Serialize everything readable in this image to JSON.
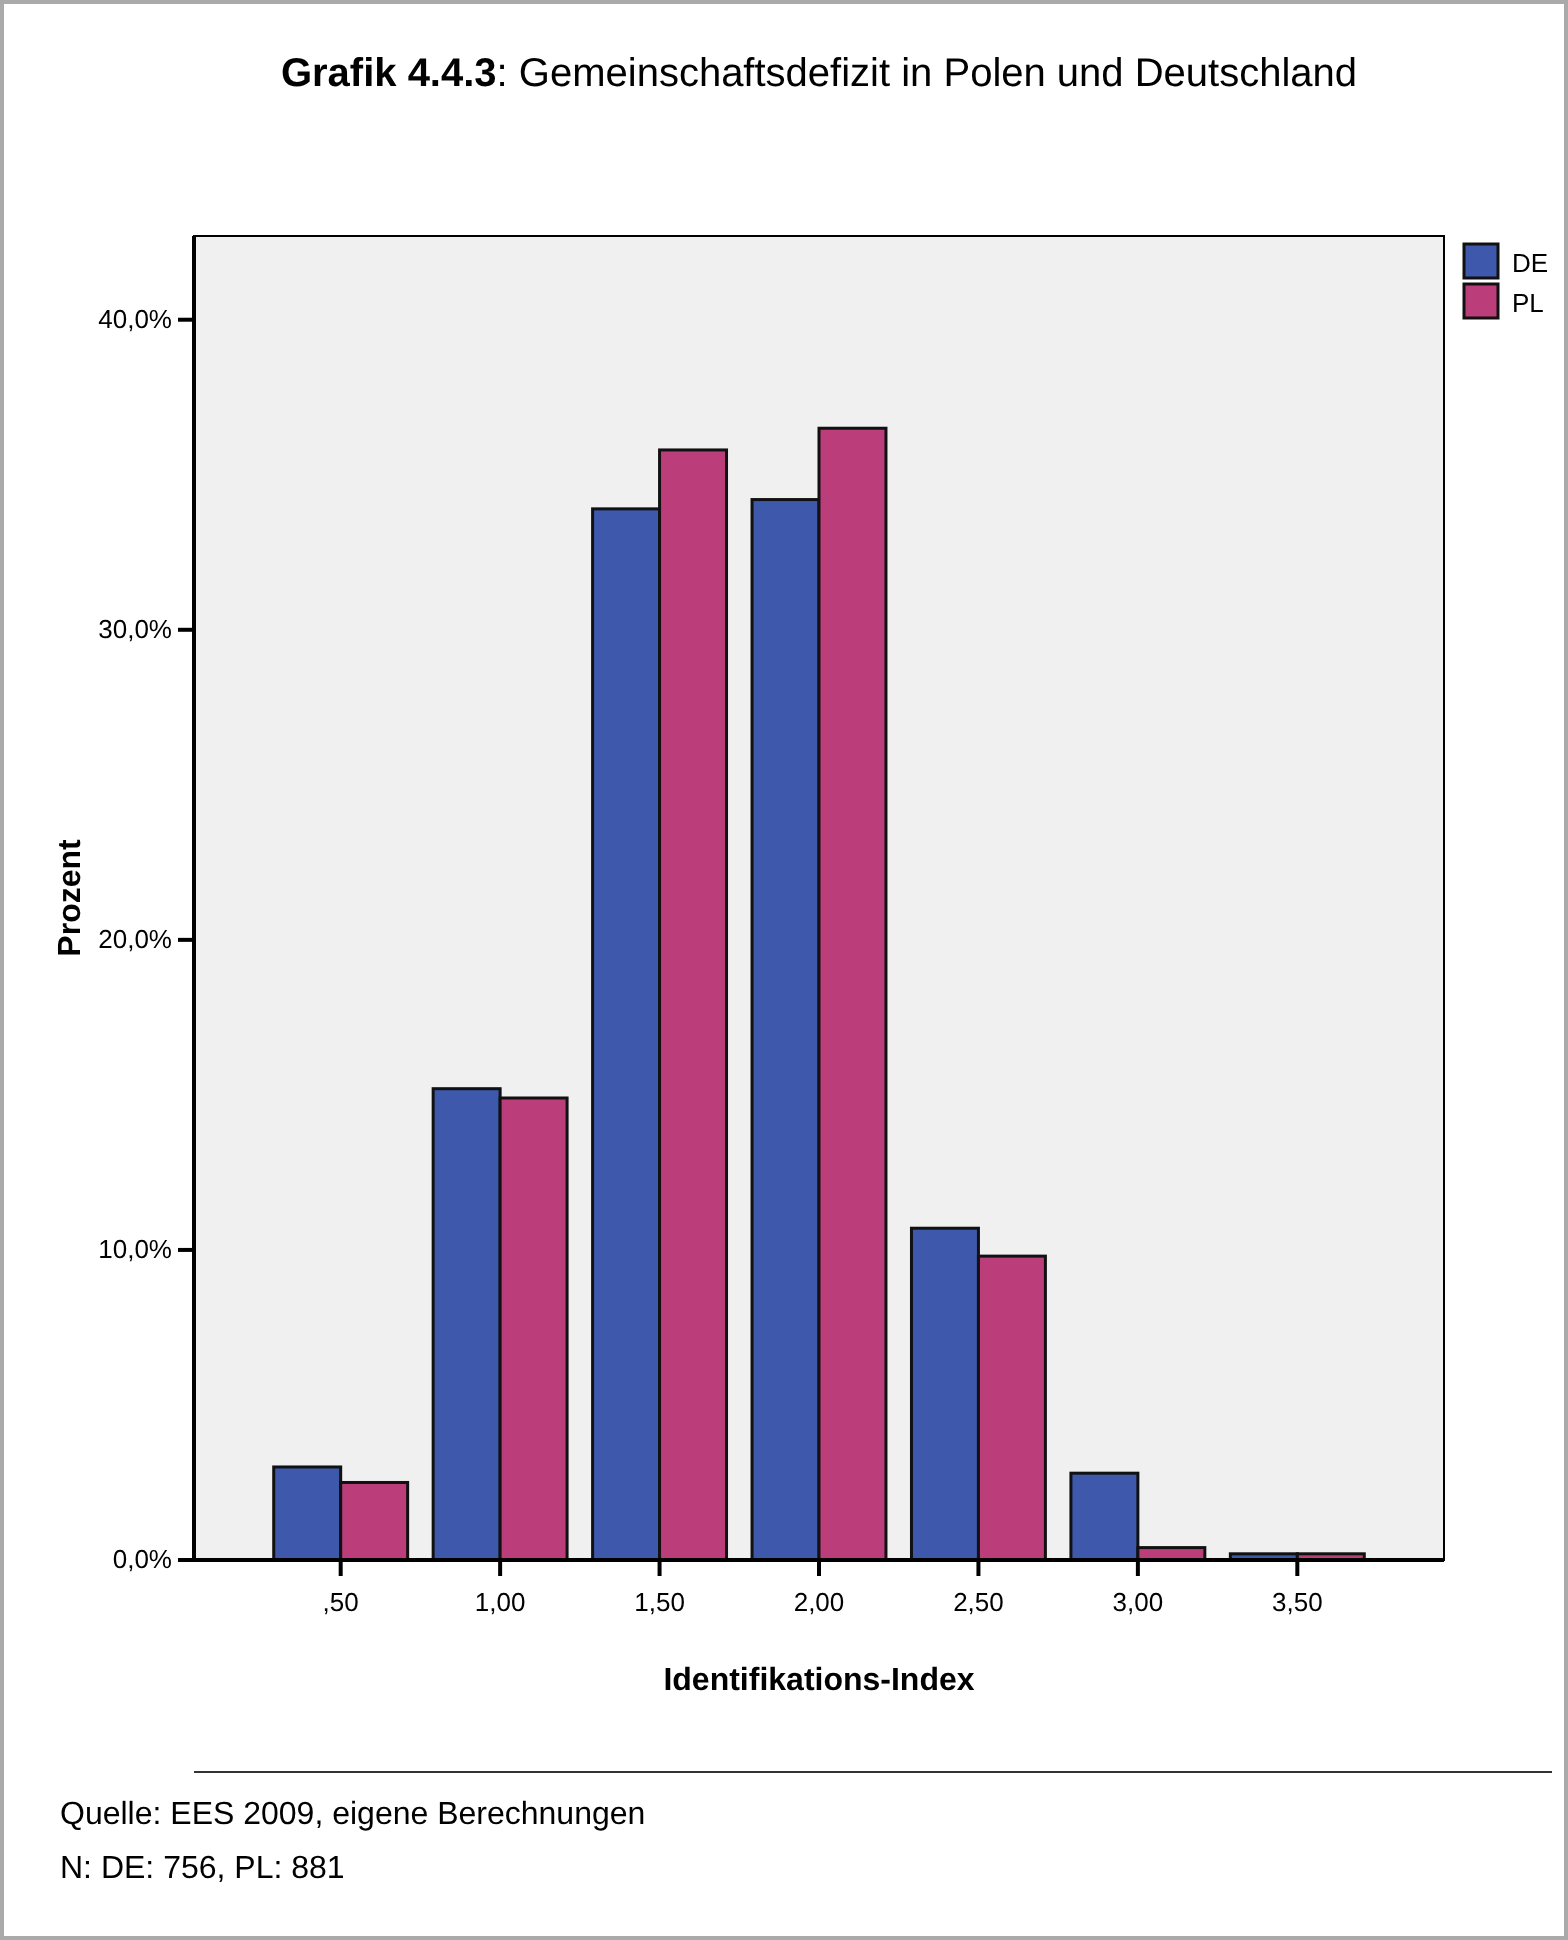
{
  "chart_data": {
    "type": "bar",
    "title": "Grafik 4.4.3: Gemeinschaftsdefizit in Polen und Deutschland",
    "xlabel": "Identifikations-Index",
    "ylabel": "Prozent",
    "categories": [
      ",50",
      "1,00",
      "1,50",
      "2,00",
      "2,50",
      "3,00",
      "3,50"
    ],
    "series": [
      {
        "name": "DE",
        "color": "#3e58ac",
        "values": [
          3.0,
          15.2,
          33.9,
          34.2,
          10.7,
          2.8,
          0.2
        ]
      },
      {
        "name": "PL",
        "color": "#bb3e7b",
        "values": [
          2.5,
          14.9,
          35.8,
          36.5,
          9.8,
          0.4,
          0.2
        ]
      }
    ],
    "ylim": [
      0,
      42.7
    ],
    "yticks": [
      {
        "value": 0,
        "label": "0,0%"
      },
      {
        "value": 10,
        "label": "10,0%"
      },
      {
        "value": 20,
        "label": "20,0%"
      },
      {
        "value": 30,
        "label": "30,0%"
      },
      {
        "value": 40,
        "label": "40,0%"
      }
    ],
    "legend": "top right",
    "annotations": [
      "Quelle: EES 2009, eigene Berechnungen",
      "N: DE: 756, PL: 881"
    ]
  }
}
